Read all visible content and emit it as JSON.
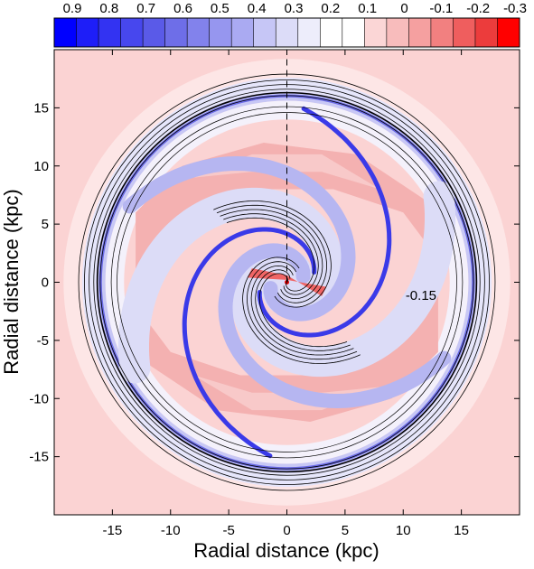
{
  "chart_data": {
    "type": "heatmap",
    "title": "",
    "xlabel": "Radial distance (kpc)",
    "ylabel": "Radial distance (kpc)",
    "xlim": [
      -20,
      20
    ],
    "ylim": [
      -20,
      20
    ],
    "x_ticks": [
      -15,
      -10,
      -5,
      0,
      5,
      10,
      15
    ],
    "y_ticks": [
      -15,
      -10,
      -5,
      0,
      5,
      10,
      15
    ],
    "colorbar": {
      "location": "top",
      "labels": [
        "0.9",
        "0.8",
        "0.7",
        "0.6",
        "0.5",
        "0.4",
        "0.3",
        "0.2",
        "0.1",
        "0",
        "-0.1",
        "-0.2",
        "-0.3"
      ],
      "values": [
        0.9,
        0.8,
        0.7,
        0.6,
        0.5,
        0.4,
        0.3,
        0.2,
        0.1,
        0,
        -0.1,
        -0.2,
        -0.3
      ],
      "colors": [
        "#0000ff",
        "#1e1ef8",
        "#3333f2",
        "#4747ee",
        "#5a5ae8",
        "#6e6ee8",
        "#8282ec",
        "#9696ef",
        "#aaaaf2",
        "#c6c6f6",
        "#dcdcf8",
        "#ededfb",
        "#ffffff",
        "#ffffff",
        "#fbd6d6",
        "#f8bcbc",
        "#f5a0a0",
        "#f28080",
        "#ef5e5e",
        "#ec3c3c",
        "#ff0000"
      ]
    },
    "annotations": [
      {
        "text": "-0.15",
        "x": 10.2,
        "y": -1.5
      }
    ],
    "reference_line": {
      "style": "dashed",
      "x": 0,
      "y_from": 0,
      "y_to": 20
    },
    "grid": false,
    "description_of_field": [
      {
        "feature": "outer ring",
        "value": 0.7,
        "radius": 16
      },
      {
        "feature": "two-armed spiral",
        "value": 0.9
      },
      {
        "feature": "inter-arm regions",
        "value": -0.1
      },
      {
        "feature": "background",
        "value": -0.05
      }
    ]
  }
}
